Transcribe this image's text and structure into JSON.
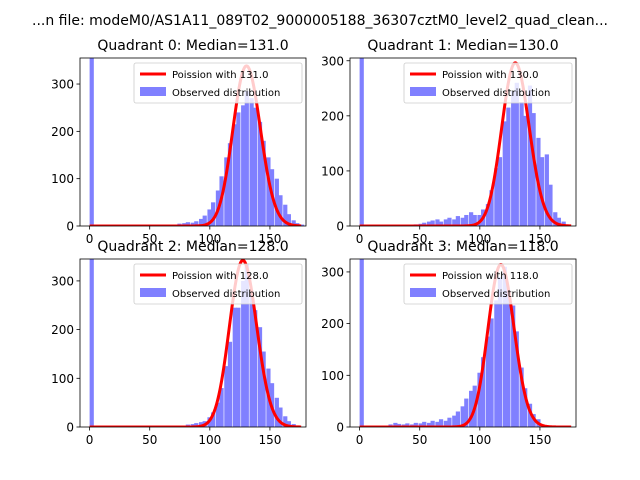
{
  "suptitle": "...n file: modeM0/AS1A11_089T02_9000005188_36307cztM0_level2_quad_clean...",
  "chart_data": [
    {
      "type": "histogram+line",
      "title": "Quadrant 0: Median=131.0",
      "xlim": [
        -8,
        180
      ],
      "ylim": [
        0,
        355
      ],
      "xticks": [
        0,
        50,
        100,
        150
      ],
      "yticks": [
        0,
        100,
        200,
        300
      ],
      "legend": {
        "position": "top-right",
        "entries": [
          "Poission with 131.0",
          "Observed distribution"
        ]
      },
      "poisson_mean": 131.0,
      "poisson_peak": 338,
      "histogram": {
        "bin_width": 3.5,
        "bins": [
          [
            0,
            355
          ],
          [
            73,
            5
          ],
          [
            77,
            6
          ],
          [
            80,
            8
          ],
          [
            84,
            7
          ],
          [
            87,
            10
          ],
          [
            91,
            15
          ],
          [
            94,
            22
          ],
          [
            98,
            35
          ],
          [
            101,
            50
          ],
          [
            105,
            75
          ],
          [
            108,
            105
          ],
          [
            112,
            145
          ],
          [
            115,
            175
          ],
          [
            119,
            215
          ],
          [
            122,
            240
          ],
          [
            126,
            255
          ],
          [
            129,
            285
          ],
          [
            133,
            270
          ],
          [
            136,
            250
          ],
          [
            140,
            220
          ],
          [
            143,
            180
          ],
          [
            147,
            145
          ],
          [
            150,
            120
          ],
          [
            154,
            100
          ],
          [
            157,
            65
          ],
          [
            161,
            45
          ],
          [
            164,
            25
          ],
          [
            168,
            12
          ],
          [
            171,
            6
          ],
          [
            175,
            3
          ]
        ]
      }
    },
    {
      "type": "histogram+line",
      "title": "Quadrant 1: Median=130.0",
      "xlim": [
        -8,
        180
      ],
      "ylim": [
        0,
        305
      ],
      "xticks": [
        0,
        50,
        100,
        150
      ],
      "yticks": [
        0,
        100,
        200,
        300
      ],
      "legend": {
        "position": "top-right",
        "entries": [
          "Poission with 130.0",
          "Observed distribution"
        ]
      },
      "poisson_mean": 130.0,
      "poisson_peak": 296,
      "histogram": {
        "bin_width": 3.5,
        "bins": [
          [
            0,
            305
          ],
          [
            45,
            3
          ],
          [
            49,
            4
          ],
          [
            52,
            6
          ],
          [
            56,
            8
          ],
          [
            59,
            10
          ],
          [
            63,
            12
          ],
          [
            66,
            8
          ],
          [
            70,
            12
          ],
          [
            73,
            15
          ],
          [
            77,
            12
          ],
          [
            80,
            18
          ],
          [
            84,
            15
          ],
          [
            87,
            20
          ],
          [
            91,
            25
          ],
          [
            94,
            20
          ],
          [
            98,
            20
          ],
          [
            101,
            30
          ],
          [
            105,
            40
          ],
          [
            108,
            65
          ],
          [
            112,
            105
          ],
          [
            115,
            125
          ],
          [
            119,
            190
          ],
          [
            122,
            215
          ],
          [
            126,
            245
          ],
          [
            129,
            260
          ],
          [
            133,
            225
          ],
          [
            136,
            200
          ],
          [
            140,
            255
          ],
          [
            143,
            205
          ],
          [
            147,
            160
          ],
          [
            150,
            125
          ],
          [
            154,
            130
          ],
          [
            157,
            75
          ],
          [
            161,
            25
          ],
          [
            164,
            15
          ],
          [
            168,
            8
          ]
        ]
      }
    },
    {
      "type": "histogram+line",
      "title": "Quadrant 2: Median=128.0",
      "xlim": [
        -8,
        180
      ],
      "ylim": [
        0,
        345
      ],
      "xticks": [
        0,
        50,
        100,
        150
      ],
      "yticks": [
        0,
        100,
        200,
        300
      ],
      "legend": {
        "position": "top-right",
        "entries": [
          "Poission with 128.0",
          "Observed distribution"
        ]
      },
      "poisson_mean": 128.0,
      "poisson_peak": 342,
      "histogram": {
        "bin_width": 3.5,
        "bins": [
          [
            0,
            345
          ],
          [
            77,
            3
          ],
          [
            80,
            5
          ],
          [
            84,
            6
          ],
          [
            87,
            8
          ],
          [
            91,
            10
          ],
          [
            94,
            12
          ],
          [
            98,
            20
          ],
          [
            101,
            30
          ],
          [
            105,
            50
          ],
          [
            108,
            80
          ],
          [
            112,
            125
          ],
          [
            115,
            175
          ],
          [
            119,
            245
          ],
          [
            122,
            245
          ],
          [
            126,
            300
          ],
          [
            129,
            335
          ],
          [
            133,
            280
          ],
          [
            136,
            240
          ],
          [
            140,
            205
          ],
          [
            143,
            155
          ],
          [
            147,
            120
          ],
          [
            150,
            90
          ],
          [
            154,
            60
          ],
          [
            157,
            40
          ],
          [
            161,
            22
          ],
          [
            164,
            12
          ],
          [
            168,
            6
          ]
        ]
      }
    },
    {
      "type": "histogram+line",
      "title": "Quadrant 3: Median=118.0",
      "xlim": [
        -8,
        180
      ],
      "ylim": [
        0,
        325
      ],
      "xticks": [
        0,
        50,
        100,
        150
      ],
      "yticks": [
        0,
        100,
        200,
        300
      ],
      "legend": {
        "position": "top-right",
        "entries": [
          "Poission with 118.0",
          "Observed distribution"
        ]
      },
      "poisson_mean": 118.0,
      "poisson_peak": 314,
      "histogram": {
        "bin_width": 3.5,
        "bins": [
          [
            0,
            325
          ],
          [
            24,
            5
          ],
          [
            28,
            8
          ],
          [
            31,
            6
          ],
          [
            35,
            5
          ],
          [
            38,
            7
          ],
          [
            42,
            5
          ],
          [
            45,
            8
          ],
          [
            49,
            7
          ],
          [
            52,
            10
          ],
          [
            56,
            8
          ],
          [
            59,
            12
          ],
          [
            63,
            10
          ],
          [
            66,
            15
          ],
          [
            70,
            12
          ],
          [
            73,
            18
          ],
          [
            77,
            22
          ],
          [
            80,
            30
          ],
          [
            84,
            40
          ],
          [
            87,
            55
          ],
          [
            91,
            70
          ],
          [
            94,
            80
          ],
          [
            98,
            105
          ],
          [
            101,
            135
          ],
          [
            105,
            175
          ],
          [
            108,
            210
          ],
          [
            112,
            245
          ],
          [
            115,
            290
          ],
          [
            119,
            310
          ],
          [
            122,
            265
          ],
          [
            126,
            235
          ],
          [
            129,
            185
          ],
          [
            133,
            115
          ],
          [
            136,
            75
          ],
          [
            140,
            45
          ],
          [
            143,
            25
          ],
          [
            147,
            15
          ]
        ]
      }
    }
  ]
}
